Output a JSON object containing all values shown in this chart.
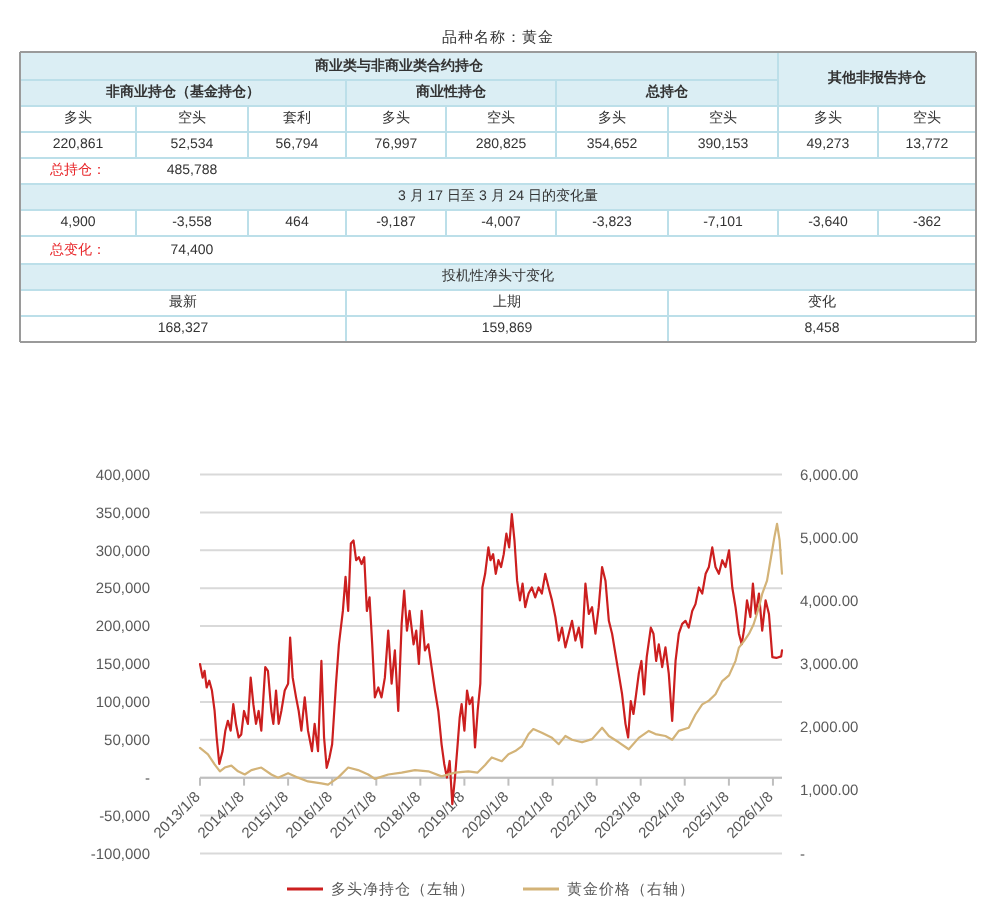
{
  "chart_data": [
    {
      "type": "other",
      "title": "品种名称：黄金",
      "annotations": [
        "商业类与非商业类合约持仓",
        "其他非报告持仓",
        "非商业持仓（基金持仓）",
        "商业性持仓",
        "总持仓",
        "多头",
        "空头",
        "套利",
        "多头",
        "空头",
        "多头",
        "空头",
        "多头",
        "空头",
        "220,861",
        "52,534",
        "56,794",
        "76,997",
        "280,825",
        "354,652",
        "390,153",
        "49,273",
        "13,772",
        "总持仓：",
        "485,788",
        "3 月 17 日至 3 月 24 日的变化量",
        "4,900",
        "-3,558",
        "464",
        "-9,187",
        "-4,007",
        "-3,823",
        "-7,101",
        "-3,640",
        "-362",
        "总变化：",
        "74,400",
        "投机性净头寸变化",
        "最新",
        "上期",
        "变化",
        "168,327",
        "159,869",
        "8,458"
      ]
    },
    {
      "type": "line",
      "grid": "y",
      "legend": "bottom",
      "xlim": [
        "2013-01-08",
        "2026-03-24"
      ],
      "xticks": [
        {
          "value": "2013-01-08",
          "label": "2013/1/8"
        },
        {
          "value": "2014-01-08",
          "label": "2014/1/8"
        },
        {
          "value": "2015-01-08",
          "label": "2015/1/8"
        },
        {
          "value": "2016-01-08",
          "label": "2016/1/8"
        },
        {
          "value": "2017-01-08",
          "label": "2017/1/8"
        },
        {
          "value": "2018-01-08",
          "label": "2018/1/8"
        },
        {
          "value": "2019-01-08",
          "label": "2019/1/8"
        },
        {
          "value": "2020-01-08",
          "label": "2020/1/8"
        },
        {
          "value": "2021-01-08",
          "label": "2021/1/8"
        },
        {
          "value": "2022-01-08",
          "label": "2022/1/8"
        },
        {
          "value": "2023-01-08",
          "label": "2023/1/8"
        },
        {
          "value": "2024-01-08",
          "label": "2024/1/8"
        },
        {
          "value": "2025-01-08",
          "label": "2025/1/8"
        },
        {
          "value": "2026-01-08",
          "label": "2026/1/8"
        }
      ],
      "ylim": [
        -100000,
        400000
      ],
      "yticks": [
        {
          "value": 400000,
          "label": "400,000"
        },
        {
          "value": 350000,
          "label": "350,000"
        },
        {
          "value": 300000,
          "label": "300,000"
        },
        {
          "value": 250000,
          "label": "250,000"
        },
        {
          "value": 200000,
          "label": "200,000"
        },
        {
          "value": 150000,
          "label": "150,000"
        },
        {
          "value": 100000,
          "label": "100,000"
        },
        {
          "value": 50000,
          "label": "50,000"
        },
        {
          "value": 0,
          "label": "-"
        },
        {
          "value": -50000,
          "label": "-50,000"
        },
        {
          "value": -100000,
          "label": "-100,000"
        }
      ],
      "y2lim": [
        0,
        6000
      ],
      "y2ticks": [
        {
          "value": 6000,
          "label": "6,000.00"
        },
        {
          "value": 5000,
          "label": "5,000.00"
        },
        {
          "value": 4000,
          "label": "4,000.00"
        },
        {
          "value": 3000,
          "label": "3,000.00"
        },
        {
          "value": 2000,
          "label": "2,000.00"
        },
        {
          "value": 1000,
          "label": "1,000.00"
        },
        {
          "value": 0,
          "label": "-"
        }
      ],
      "series": [
        {
          "name": "多头净持仓（左轴）",
          "color": "#cc1f1f",
          "x": [
            "2013-01-08",
            "2013-01-30",
            "2013-02-15",
            "2013-03-04",
            "2013-03-26",
            "2013-04-17",
            "2013-05-09",
            "2013-05-26",
            "2013-06-17",
            "2013-07-14",
            "2013-08-06",
            "2013-08-27",
            "2013-09-19",
            "2013-10-11",
            "2013-11-02",
            "2013-11-24",
            "2013-12-16",
            "2014-01-08",
            "2014-02-09",
            "2014-03-04",
            "2014-03-26",
            "2014-04-17",
            "2014-05-09",
            "2014-05-31",
            "2014-07-03",
            "2014-07-25",
            "2014-08-22",
            "2014-09-08",
            "2014-09-30",
            "2014-10-22",
            "2014-11-13",
            "2014-12-11",
            "2015-01-08",
            "2015-01-25",
            "2015-02-15",
            "2015-03-15",
            "2015-04-06",
            "2015-04-28",
            "2015-05-26",
            "2015-06-22",
            "2015-07-25",
            "2015-08-16",
            "2015-09-13",
            "2015-10-11",
            "2015-11-02",
            "2015-11-24",
            "2015-12-16",
            "2016-01-08",
            "2016-02-09",
            "2016-03-04",
            "2016-04-06",
            "2016-04-28",
            "2016-05-20",
            "2016-06-11",
            "2016-07-03",
            "2016-07-25",
            "2016-08-16",
            "2016-09-08",
            "2016-09-30",
            "2016-10-22",
            "2016-11-13",
            "2016-12-05",
            "2016-12-27",
            "2017-01-25",
            "2017-02-20",
            "2017-03-20",
            "2017-04-17",
            "2017-05-15",
            "2017-06-11",
            "2017-07-09",
            "2017-08-06",
            "2017-08-27",
            "2017-09-19",
            "2017-10-11",
            "2017-11-13",
            "2017-12-05",
            "2017-12-27",
            "2018-01-19",
            "2018-02-15",
            "2018-03-15",
            "2018-04-11",
            "2018-05-09",
            "2018-06-06",
            "2018-07-03",
            "2018-07-25",
            "2018-08-16",
            "2018-09-08",
            "2018-09-30",
            "2018-10-22",
            "2018-11-13",
            "2018-11-30",
            "2018-12-16",
            "2019-01-08",
            "2019-01-30",
            "2019-02-20",
            "2019-03-15",
            "2019-04-06",
            "2019-04-28",
            "2019-05-20",
            "2019-06-06",
            "2019-06-29",
            "2019-07-26",
            "2019-08-12",
            "2019-09-03",
            "2019-09-25",
            "2019-10-17",
            "2019-11-08",
            "2019-11-30",
            "2019-12-22",
            "2020-01-14",
            "2020-02-05",
            "2020-02-27",
            "2020-03-20",
            "2020-04-12",
            "2020-05-04",
            "2020-05-26",
            "2020-06-23",
            "2020-07-20",
            "2020-08-17",
            "2020-09-14",
            "2020-10-11",
            "2020-11-08",
            "2020-12-06",
            "2021-01-03",
            "2021-01-31",
            "2021-02-28",
            "2021-03-27",
            "2021-04-24",
            "2021-05-22",
            "2021-06-18",
            "2021-07-16",
            "2021-08-13",
            "2021-09-09",
            "2021-10-07",
            "2021-11-04",
            "2021-12-01",
            "2021-12-29",
            "2022-01-25",
            "2022-02-22",
            "2022-03-22",
            "2022-04-19",
            "2022-05-16",
            "2022-06-13",
            "2022-07-10",
            "2022-08-07",
            "2022-09-04",
            "2022-09-26",
            "2022-10-18",
            "2022-11-09",
            "2022-12-01",
            "2022-12-23",
            "2023-01-14",
            "2023-02-05",
            "2023-02-27",
            "2023-04-02",
            "2023-04-24",
            "2023-05-16",
            "2023-06-07",
            "2023-07-05",
            "2023-08-01",
            "2023-08-29",
            "2023-09-26",
            "2023-10-24",
            "2023-11-20",
            "2023-12-18",
            "2024-01-14",
            "2024-02-10",
            "2024-03-10",
            "2024-04-06",
            "2024-05-04",
            "2024-06-01",
            "2024-06-29",
            "2024-07-26",
            "2024-08-23",
            "2024-09-19",
            "2024-10-17",
            "2024-11-14",
            "2024-12-11",
            "2025-01-09",
            "2025-02-05",
            "2025-03-04",
            "2025-04-01",
            "2025-04-24",
            "2025-05-16",
            "2025-06-07",
            "2025-07-05",
            "2025-07-26",
            "2025-08-18",
            "2025-09-14",
            "2025-10-11",
            "2025-11-08",
            "2025-12-06",
            "2026-01-03",
            "2026-02-05",
            "2026-03-17",
            "2026-03-24"
          ],
          "values": [
            150000,
            132000,
            141000,
            119000,
            128000,
            115000,
            88000,
            53000,
            18000,
            35000,
            62000,
            75000,
            62000,
            97000,
            71000,
            53000,
            57000,
            88000,
            71000,
            132000,
            97000,
            71000,
            88000,
            62000,
            146000,
            141000,
            88000,
            71000,
            115000,
            71000,
            88000,
            115000,
            124000,
            185000,
            132000,
            106000,
            88000,
            62000,
            106000,
            62000,
            35000,
            71000,
            35000,
            154000,
            53000,
            13000,
            26000,
            44000,
            124000,
            176000,
            220000,
            265000,
            220000,
            309000,
            313000,
            287000,
            291000,
            282000,
            291000,
            220000,
            238000,
            176000,
            106000,
            119000,
            106000,
            132000,
            194000,
            124000,
            168000,
            88000,
            203000,
            247000,
            194000,
            220000,
            176000,
            194000,
            150000,
            220000,
            168000,
            176000,
            146000,
            115000,
            88000,
            44000,
            18000,
            0,
            22000,
            -35000,
            0,
            44000,
            79000,
            97000,
            62000,
            115000,
            97000,
            106000,
            40000,
            88000,
            124000,
            251000,
            269000,
            304000,
            287000,
            295000,
            269000,
            287000,
            278000,
            295000,
            322000,
            304000,
            348000,
            313000,
            260000,
            234000,
            256000,
            225000,
            243000,
            251000,
            238000,
            251000,
            243000,
            269000,
            251000,
            234000,
            212000,
            181000,
            198000,
            172000,
            190000,
            207000,
            181000,
            198000,
            172000,
            256000,
            216000,
            225000,
            190000,
            225000,
            278000,
            260000,
            207000,
            190000,
            163000,
            137000,
            110000,
            71000,
            53000,
            101000,
            84000,
            110000,
            137000,
            154000,
            110000,
            159000,
            198000,
            190000,
            154000,
            176000,
            146000,
            172000,
            137000,
            75000,
            154000,
            190000,
            203000,
            207000,
            198000,
            220000,
            229000,
            251000,
            243000,
            269000,
            278000,
            304000,
            278000,
            269000,
            287000,
            278000,
            300000,
            251000,
            225000,
            190000,
            176000,
            198000,
            234000,
            212000,
            256000,
            216000,
            243000,
            194000,
            234000,
            216000,
            159000,
            158000,
            160000,
            168000
          ]
        },
        {
          "name": "黄金价格（右轴）",
          "color": "#d3b378",
          "axis": "y2",
          "x": [
            "2013-01-08",
            "2013-03-15",
            "2013-05-09",
            "2013-06-22",
            "2013-08-01",
            "2013-09-25",
            "2013-11-19",
            "2014-01-14",
            "2014-03-10",
            "2014-05-31",
            "2014-08-22",
            "2014-10-17",
            "2015-01-08",
            "2015-04-01",
            "2015-06-22",
            "2015-10-11",
            "2015-12-05",
            "2016-02-26",
            "2016-05-20",
            "2016-08-10",
            "2016-11-02",
            "2016-12-27",
            "2017-04-17",
            "2017-08-06",
            "2017-11-24",
            "2018-03-15",
            "2018-07-03",
            "2018-10-22",
            "2019-02-09",
            "2019-04-28",
            "2019-06-29",
            "2019-07-25",
            "2019-08-23",
            "2019-11-14",
            "2020-01-08",
            "2020-03-04",
            "2020-04-29",
            "2020-06-23",
            "2020-08-01",
            "2020-10-11",
            "2021-01-03",
            "2021-02-28",
            "2021-04-24",
            "2021-06-18",
            "2021-09-09",
            "2021-12-01",
            "2022-02-22",
            "2022-04-19",
            "2022-07-10",
            "2022-10-01",
            "2022-12-23",
            "2023-03-16",
            "2023-05-10",
            "2023-08-01",
            "2023-09-26",
            "2023-11-20",
            "2024-02-10",
            "2024-04-06",
            "2024-06-01",
            "2024-07-26",
            "2024-09-19",
            "2024-11-14",
            "2025-01-09",
            "2025-03-04",
            "2025-04-01",
            "2025-05-16",
            "2025-06-24",
            "2025-08-01",
            "2025-09-14",
            "2025-10-11",
            "2025-11-20",
            "2025-12-23",
            "2026-01-20",
            "2026-02-11",
            "2026-03-04",
            "2026-03-24"
          ],
          "values": [
            1670,
            1570,
            1410,
            1300,
            1360,
            1390,
            1300,
            1250,
            1320,
            1360,
            1250,
            1200,
            1270,
            1200,
            1140,
            1110,
            1090,
            1200,
            1360,
            1320,
            1250,
            1180,
            1250,
            1280,
            1320,
            1300,
            1220,
            1280,
            1300,
            1280,
            1400,
            1460,
            1520,
            1460,
            1570,
            1620,
            1700,
            1890,
            1970,
            1910,
            1830,
            1730,
            1860,
            1800,
            1760,
            1810,
            1990,
            1860,
            1760,
            1650,
            1830,
            1940,
            1890,
            1860,
            1800,
            1940,
            1990,
            2200,
            2360,
            2420,
            2520,
            2730,
            2820,
            3050,
            3260,
            3370,
            3480,
            3630,
            3900,
            4110,
            4320,
            4690,
            5010,
            5220,
            4960,
            4430
          ]
        }
      ]
    }
  ]
}
